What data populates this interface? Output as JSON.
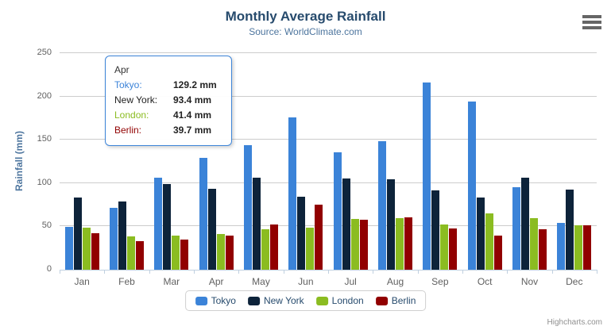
{
  "chart": {
    "title": "Monthly Average Rainfall",
    "subtitle": "Source: WorldClimate.com",
    "y_axis_title": "Rainfall (mm)",
    "credits": "Highcharts.com"
  },
  "chart_data": {
    "type": "bar",
    "title": "Monthly Average Rainfall",
    "subtitle": "Source: WorldClimate.com",
    "categories": [
      "Jan",
      "Feb",
      "Mar",
      "Apr",
      "May",
      "Jun",
      "Jul",
      "Aug",
      "Sep",
      "Oct",
      "Nov",
      "Dec"
    ],
    "series": [
      {
        "name": "Tokyo",
        "color": "#3b83d8",
        "values": [
          49.9,
          71.5,
          106.4,
          129.2,
          144.0,
          176.0,
          135.6,
          148.5,
          216.4,
          194.1,
          95.6,
          54.4
        ]
      },
      {
        "name": "New York",
        "color": "#0d233a",
        "values": [
          83.6,
          78.8,
          98.5,
          93.4,
          106.0,
          84.5,
          105.0,
          104.3,
          91.2,
          83.5,
          106.6,
          92.3
        ]
      },
      {
        "name": "London",
        "color": "#8bbc21",
        "values": [
          48.9,
          38.8,
          39.3,
          41.4,
          47.0,
          48.3,
          59.0,
          59.6,
          52.4,
          65.2,
          59.3,
          51.2
        ]
      },
      {
        "name": "Berlin",
        "color": "#910000",
        "values": [
          42.4,
          33.2,
          34.5,
          39.7,
          52.6,
          75.5,
          57.4,
          60.4,
          47.6,
          39.1,
          46.8,
          51.1
        ]
      }
    ],
    "xlabel": "",
    "ylabel": "Rainfall (mm)",
    "ylim": [
      0,
      250
    ],
    "yticks": [
      0,
      50,
      100,
      150,
      200,
      250
    ],
    "grid": true,
    "legend_position": "bottom"
  },
  "tooltip": {
    "header": "Apr",
    "rows": [
      {
        "name": "Tokyo:",
        "value": "129.2 mm",
        "color": "#3b83d8"
      },
      {
        "name": "New York:",
        "value": "93.4 mm",
        "color": "#222222"
      },
      {
        "name": "London:",
        "value": "41.4 mm",
        "color": "#8bbc21"
      },
      {
        "name": "Berlin:",
        "value": "39.7 mm",
        "color": "#910000"
      }
    ]
  },
  "colors": {
    "title": "#274b6d",
    "subtitle": "#4d759e",
    "axis_labels": "#606060",
    "gridline": "#cccccc",
    "axis_line": "#c0d0e0",
    "tooltip_border": "#3c84d8"
  }
}
